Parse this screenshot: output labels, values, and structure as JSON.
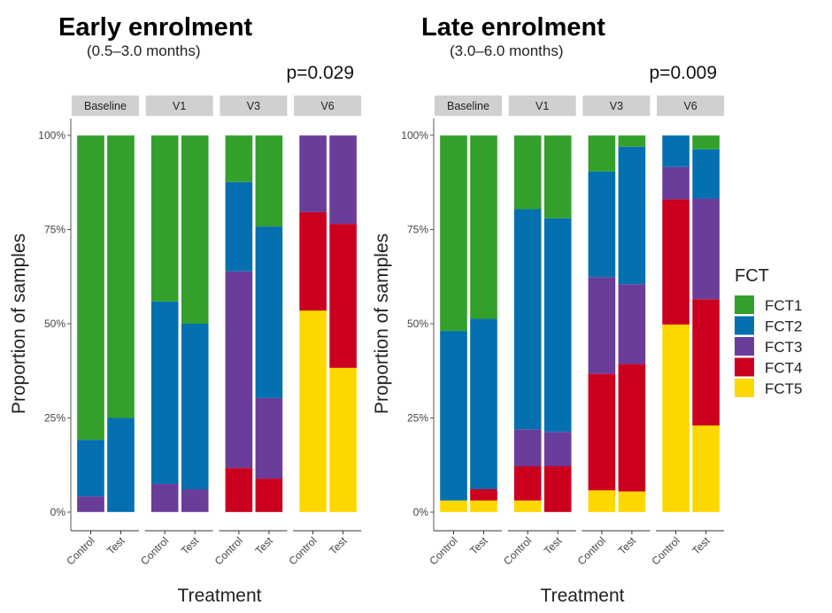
{
  "chart_data": {
    "type": "bar",
    "stacked": true,
    "normalized": true,
    "legend": {
      "title": "FCT",
      "position": "right",
      "entries": [
        {
          "name": "FCT1",
          "color": "#33A02C"
        },
        {
          "name": "FCT2",
          "color": "#0570B0"
        },
        {
          "name": "FCT3",
          "color": "#6A3D9A"
        },
        {
          "name": "FCT4",
          "color": "#CB001F"
        },
        {
          "name": "FCT5",
          "color": "#FFD700"
        }
      ]
    },
    "ylabel": "Proportion of samples",
    "xlabel": "Treatment",
    "ylim": [
      0,
      1
    ],
    "yticks": [
      "0%",
      "25%",
      "50%",
      "75%",
      "100%"
    ],
    "facets": [
      "Baseline",
      "V1",
      "V3",
      "V6"
    ],
    "categories": [
      "Control",
      "Test"
    ],
    "panels": [
      {
        "title": "Early enrolment",
        "subtitle": "(0.5–3.0 months)",
        "pvalue": "p=0.029",
        "bars": [
          {
            "facet": "Baseline",
            "treatment": "Control",
            "FCT1": 0.808,
            "FCT2": 0.15,
            "FCT3": 0.042,
            "FCT4": 0.0,
            "FCT5": 0.0
          },
          {
            "facet": "Baseline",
            "treatment": "Test",
            "FCT1": 0.75,
            "FCT2": 0.25,
            "FCT3": 0.0,
            "FCT4": 0.0,
            "FCT5": 0.0
          },
          {
            "facet": "V1",
            "treatment": "Control",
            "FCT1": 0.441,
            "FCT2": 0.484,
            "FCT3": 0.075,
            "FCT4": 0.0,
            "FCT5": 0.0
          },
          {
            "facet": "V1",
            "treatment": "Test",
            "FCT1": 0.5,
            "FCT2": 0.439,
            "FCT3": 0.061,
            "FCT4": 0.0,
            "FCT5": 0.0
          },
          {
            "facet": "V3",
            "treatment": "Control",
            "FCT1": 0.124,
            "FCT2": 0.237,
            "FCT3": 0.522,
            "FCT4": 0.117,
            "FCT5": 0.0
          },
          {
            "facet": "V3",
            "treatment": "Test",
            "FCT1": 0.242,
            "FCT2": 0.455,
            "FCT3": 0.214,
            "FCT4": 0.089,
            "FCT5": 0.0
          },
          {
            "facet": "V6",
            "treatment": "Control",
            "FCT1": 0.0,
            "FCT2": 0.0,
            "FCT3": 0.204,
            "FCT4": 0.261,
            "FCT5": 0.535
          },
          {
            "facet": "V6",
            "treatment": "Test",
            "FCT1": 0.0,
            "FCT2": 0.0,
            "FCT3": 0.235,
            "FCT4": 0.382,
            "FCT5": 0.383
          }
        ]
      },
      {
        "title": "Late enrolment",
        "subtitle": "(3.0–6.0 months)",
        "pvalue": "p=0.009",
        "bars": [
          {
            "facet": "Baseline",
            "treatment": "Control",
            "FCT1": 0.519,
            "FCT2": 0.45,
            "FCT3": 0.0,
            "FCT4": 0.0,
            "FCT5": 0.031
          },
          {
            "facet": "Baseline",
            "treatment": "Test",
            "FCT1": 0.487,
            "FCT2": 0.452,
            "FCT3": 0.0,
            "FCT4": 0.03,
            "FCT5": 0.031
          },
          {
            "facet": "V1",
            "treatment": "Control",
            "FCT1": 0.196,
            "FCT2": 0.584,
            "FCT3": 0.098,
            "FCT4": 0.091,
            "FCT5": 0.031
          },
          {
            "facet": "V1",
            "treatment": "Test",
            "FCT1": 0.22,
            "FCT2": 0.567,
            "FCT3": 0.091,
            "FCT4": 0.122,
            "FCT5": 0.0
          },
          {
            "facet": "V3",
            "treatment": "Control",
            "FCT1": 0.096,
            "FCT2": 0.28,
            "FCT3": 0.257,
            "FCT4": 0.309,
            "FCT5": 0.058
          },
          {
            "facet": "V3",
            "treatment": "Test",
            "FCT1": 0.03,
            "FCT2": 0.365,
            "FCT3": 0.212,
            "FCT4": 0.338,
            "FCT5": 0.055
          },
          {
            "facet": "V6",
            "treatment": "Control",
            "FCT1": 0.0,
            "FCT2": 0.084,
            "FCT3": 0.086,
            "FCT4": 0.332,
            "FCT5": 0.498
          },
          {
            "facet": "V6",
            "treatment": "Test",
            "FCT1": 0.037,
            "FCT2": 0.131,
            "FCT3": 0.267,
            "FCT4": 0.335,
            "FCT5": 0.23
          }
        ]
      }
    ]
  }
}
